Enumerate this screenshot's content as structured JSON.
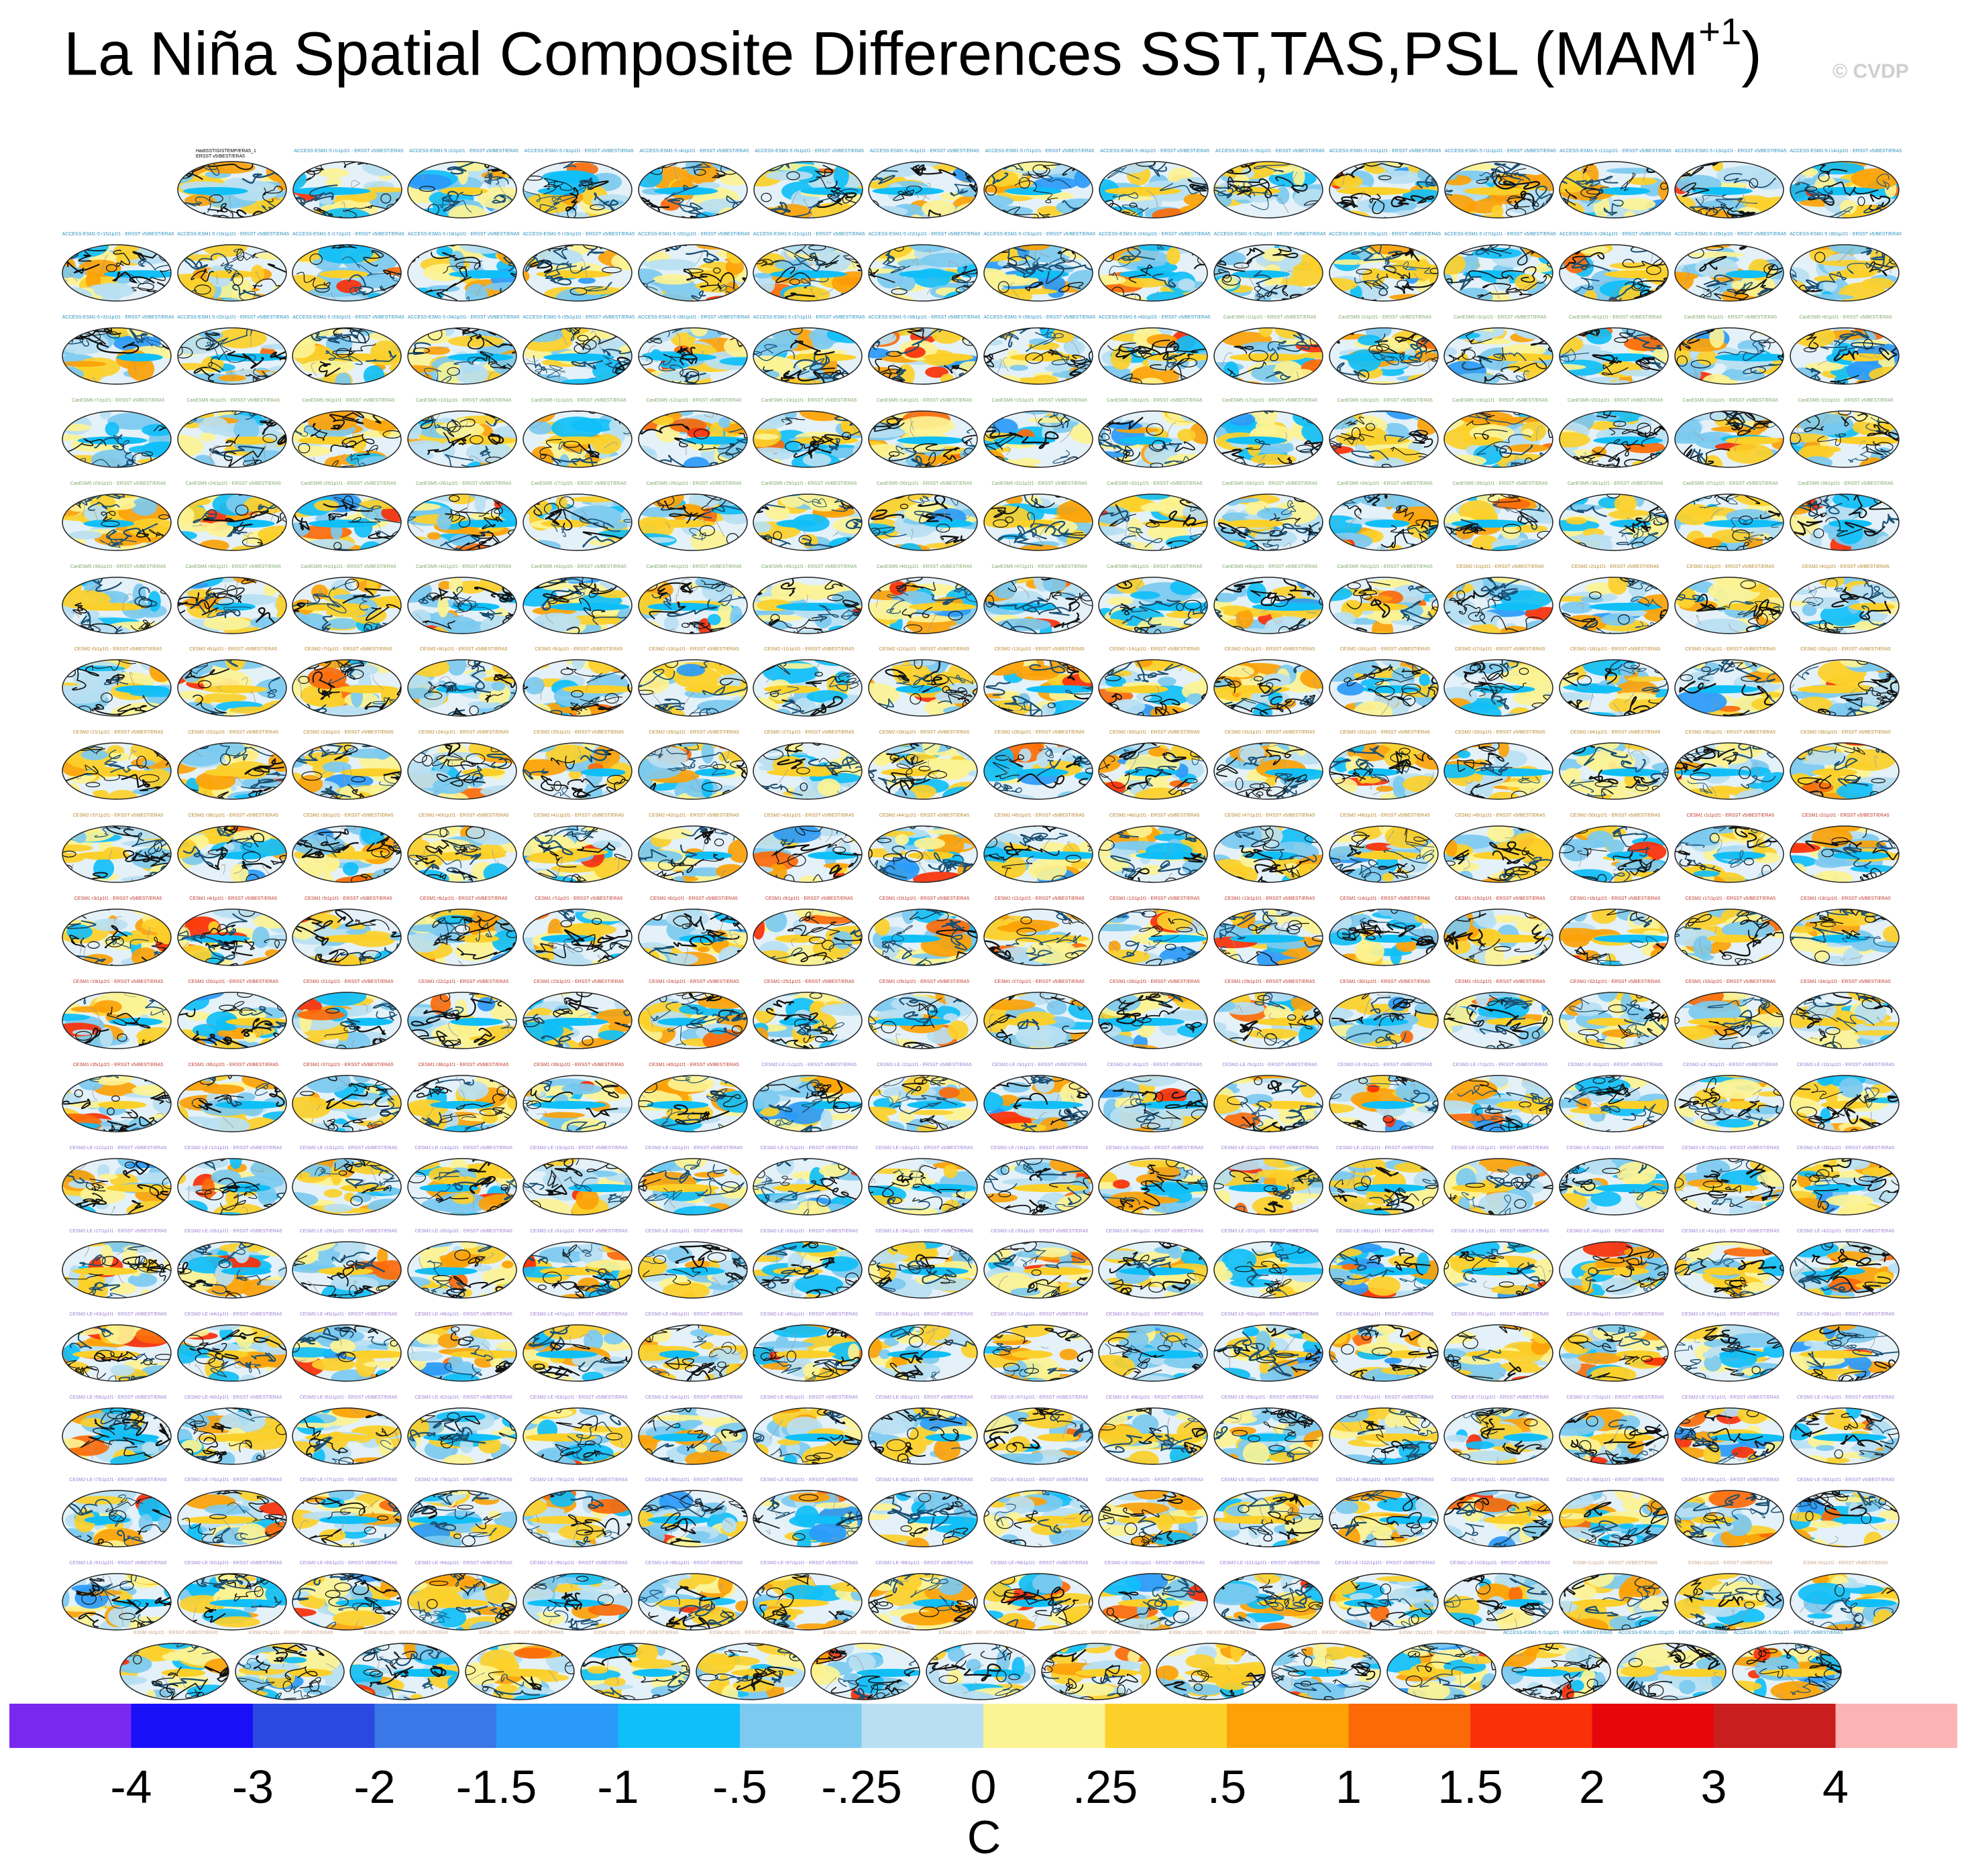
{
  "title": {
    "main": "La Niña Spatial Composite Differences SST,TAS,PSL (MAM",
    "superscript": "+1",
    "close": ")"
  },
  "watermark": "© CVDP",
  "observation_panel": {
    "label_line1": "HadISST/GISTEMP/ERA5_1",
    "label_line2": "ERSST v5/BEST/ERA5"
  },
  "model_groups": [
    {
      "name": "ACCESS-ESM1-5",
      "count": 40,
      "color": "#2a8fbf"
    },
    {
      "name": "CanESM5",
      "count": 50,
      "color": "#7fa86a"
    },
    {
      "name": "CESM2",
      "count": 50,
      "color": "#b98a2e"
    },
    {
      "name": "CESM1",
      "count": 40,
      "color": "#c0392b"
    },
    {
      "name": "CESM2-LE",
      "count": 103,
      "color": "#9b7fd6"
    },
    {
      "name": "E3SM",
      "count": 15,
      "color": "#c9a38a"
    }
  ],
  "label_suffix": " - ERSST v5/BEST/ERA5",
  "chart_data": {
    "type": "heatmap",
    "title": "La Niña Spatial Composite Differences SST,TAS,PSL (MAM+1)",
    "description_of_panels": "Grid of global composite maps (one observational panel plus model ensemble members)",
    "rows": 19,
    "colorbar": {
      "unit": "C",
      "tick_labels": [
        "-4",
        "-3",
        "-2",
        "-1.5",
        "-1",
        "-.5",
        "-.25",
        "0",
        ".25",
        ".5",
        "1",
        "1.5",
        "2",
        "3",
        "4"
      ],
      "levels": [
        -4,
        -3,
        -2,
        -1.5,
        -1,
        -0.5,
        -0.25,
        0,
        0.25,
        0.5,
        1,
        1.5,
        2,
        3,
        4
      ],
      "colors": [
        "#7a28f0",
        "#1a10f8",
        "#2b48e0",
        "#3a78e8",
        "#2a9af8",
        "#10bff8",
        "#7ccaf0",
        "#b8e0f2",
        "#fcf394",
        "#fcd02a",
        "#fca208",
        "#fc6a08",
        "#fa3008",
        "#e6060b",
        "#c81e1e",
        "#fbb3b3"
      ]
    }
  }
}
